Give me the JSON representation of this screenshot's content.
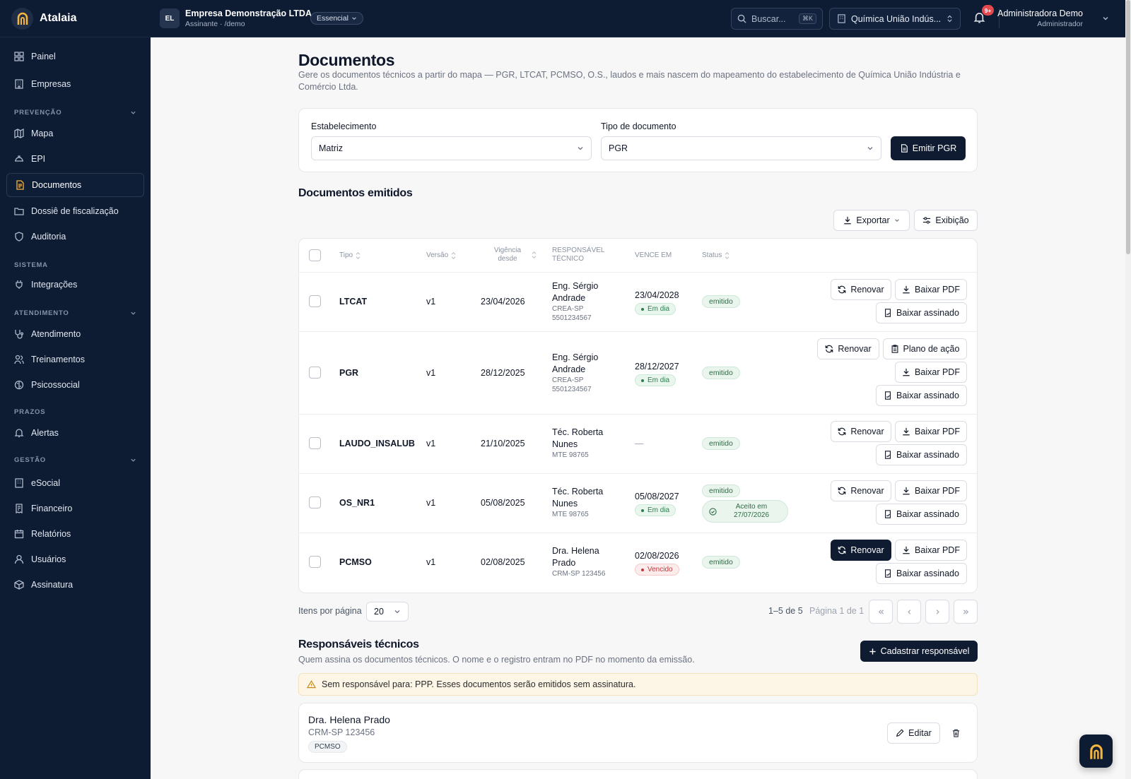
{
  "brand": {
    "name": "Atalaia"
  },
  "sidebar": {
    "items": [
      {
        "label": "Painel",
        "icon": "dashboard-icon"
      },
      {
        "label": "Empresas",
        "icon": "building-icon"
      },
      {
        "label": "Mapa",
        "icon": "map-icon"
      },
      {
        "label": "EPI",
        "icon": "hardhat-icon"
      },
      {
        "label": "Documentos",
        "icon": "document-icon"
      },
      {
        "label": "Dossiê de fiscalização",
        "icon": "folder-icon"
      },
      {
        "label": "Auditoria",
        "icon": "shield-icon"
      },
      {
        "label": "Integrações",
        "icon": "plug-icon"
      },
      {
        "label": "Atendimento",
        "icon": "stethoscope-icon"
      },
      {
        "label": "Treinamentos",
        "icon": "users-icon"
      },
      {
        "label": "Psicossocial",
        "icon": "brain-icon"
      },
      {
        "label": "Alertas",
        "icon": "bell-icon"
      },
      {
        "label": "eSocial",
        "icon": "building-icon"
      },
      {
        "label": "Financeiro",
        "icon": "receipt-icon"
      },
      {
        "label": "Relatórios",
        "icon": "calendar-icon"
      },
      {
        "label": "Usuários",
        "icon": "user-icon"
      },
      {
        "label": "Assinatura",
        "icon": "package-icon"
      }
    ],
    "sections": {
      "prevencao": "PREVENÇÃO",
      "sistema": "SISTEMA",
      "atendimento": "ATENDIMENTO",
      "prazos": "PRAZOS",
      "gestao": "GESTÃO"
    }
  },
  "topbar": {
    "org_initials": "EL",
    "org_name": "Empresa Demonstração LTDA",
    "org_sub": "Assinante · /demo",
    "plan": "Essencial",
    "search_placeholder": "Buscar...",
    "search_shortcut": "⌘K",
    "establishment": "Química União Indús...",
    "notifications": "9+",
    "user_name": "Administradora Demo",
    "user_role": "Administrador"
  },
  "page": {
    "title": "Documentos",
    "description": "Gere os documentos técnicos a partir do mapa — PGR, LTCAT, PCMSO, O.S., laudos e mais nascem do mapeamento do estabelecimento de Química União Indústria e Comércio Ltda."
  },
  "form": {
    "estab_label": "Estabelecimento",
    "estab_value": "Matriz",
    "tipo_label": "Tipo de documento",
    "tipo_value": "PGR",
    "emit_label": "Emitir PGR"
  },
  "emitted": {
    "title": "Documentos emitidos",
    "export_label": "Exportar",
    "display_label": "Exibição",
    "columns": {
      "tipo": "Tipo",
      "versao": "Versão",
      "vigencia_1": "Vigência",
      "vigencia_2": "desde",
      "resp_1": "RESPONSÁVEL",
      "resp_2": "TÉCNICO",
      "vence": "VENCE EM",
      "status": "Status"
    },
    "rows": [
      {
        "tipo": "LTCAT",
        "versao": "v1",
        "vigencia": "23/04/2026",
        "resp_name_1": "Eng. Sérgio",
        "resp_name_2": "Andrade",
        "resp_reg_1": "CREA-SP",
        "resp_reg_2": "5501234567",
        "vence": "23/04/2028",
        "vence_status": "Em dia",
        "status": "emitido",
        "actions": {
          "renovar": "Renovar",
          "baixar_pdf": "Baixar PDF",
          "baixar_assinado": "Baixar assinado"
        }
      },
      {
        "tipo": "PGR",
        "versao": "v1",
        "vigencia": "28/12/2025",
        "resp_name_1": "Eng. Sérgio",
        "resp_name_2": "Andrade",
        "resp_reg_1": "CREA-SP",
        "resp_reg_2": "5501234567",
        "vence": "28/12/2027",
        "vence_status": "Em dia",
        "status": "emitido",
        "actions": {
          "renovar": "Renovar",
          "plano_acao": "Plano de ação",
          "baixar_pdf": "Baixar PDF",
          "baixar_assinado": "Baixar assinado"
        }
      },
      {
        "tipo": "LAUDO_INSALUB",
        "versao": "v1",
        "vigencia": "21/10/2025",
        "resp_name_1": "Téc. Roberta",
        "resp_name_2": "Nunes",
        "resp_reg_1": "MTE 98765",
        "vence": "—",
        "status": "emitido",
        "actions": {
          "renovar": "Renovar",
          "baixar_pdf": "Baixar PDF",
          "baixar_assinado": "Baixar assinado"
        }
      },
      {
        "tipo": "OS_NR1",
        "versao": "v1",
        "vigencia": "05/08/2025",
        "resp_name_1": "Téc. Roberta",
        "resp_name_2": "Nunes",
        "resp_reg_1": "MTE 98765",
        "vence": "05/08/2027",
        "vence_status": "Em dia",
        "status": "emitido",
        "accepted_1": "Aceito em",
        "accepted_2": "27/07/2026",
        "actions": {
          "renovar": "Renovar",
          "baixar_pdf": "Baixar PDF",
          "baixar_assinado": "Baixar assinado"
        }
      },
      {
        "tipo": "PCMSO",
        "versao": "v1",
        "vigencia": "02/08/2025",
        "resp_name_1": "Dra. Helena",
        "resp_name_2": "Prado",
        "resp_reg_1": "CRM-SP 123456",
        "vence": "02/08/2026",
        "vence_status": "Vencido",
        "status": "emitido",
        "actions": {
          "renovar": "Renovar",
          "baixar_pdf": "Baixar PDF",
          "baixar_assinado": "Baixar assinado"
        }
      }
    ],
    "pagination": {
      "per_page_label": "Itens por página",
      "per_page": "20",
      "range": "1–5 de 5",
      "page": "Página 1 de 1"
    }
  },
  "responsaveis": {
    "title": "Responsáveis técnicos",
    "subtitle": "Quem assina os documentos técnicos. O nome e o registro entram no PDF no momento da emissão.",
    "add_label": "Cadastrar responsável",
    "warning": "Sem responsável para: PPP. Esses documentos serão emitidos sem assinatura.",
    "items": [
      {
        "name": "Dra. Helena Prado",
        "registro": "CRM-SP 123456",
        "tag": "PCMSO",
        "edit_label": "Editar"
      }
    ]
  },
  "colors": {
    "sidebar_bg": "#0d1b33",
    "accent_dark": "#0f1b30",
    "success": "#2f7d4f",
    "danger": "#c0383b",
    "warning_bg": "#fdf6e7"
  }
}
